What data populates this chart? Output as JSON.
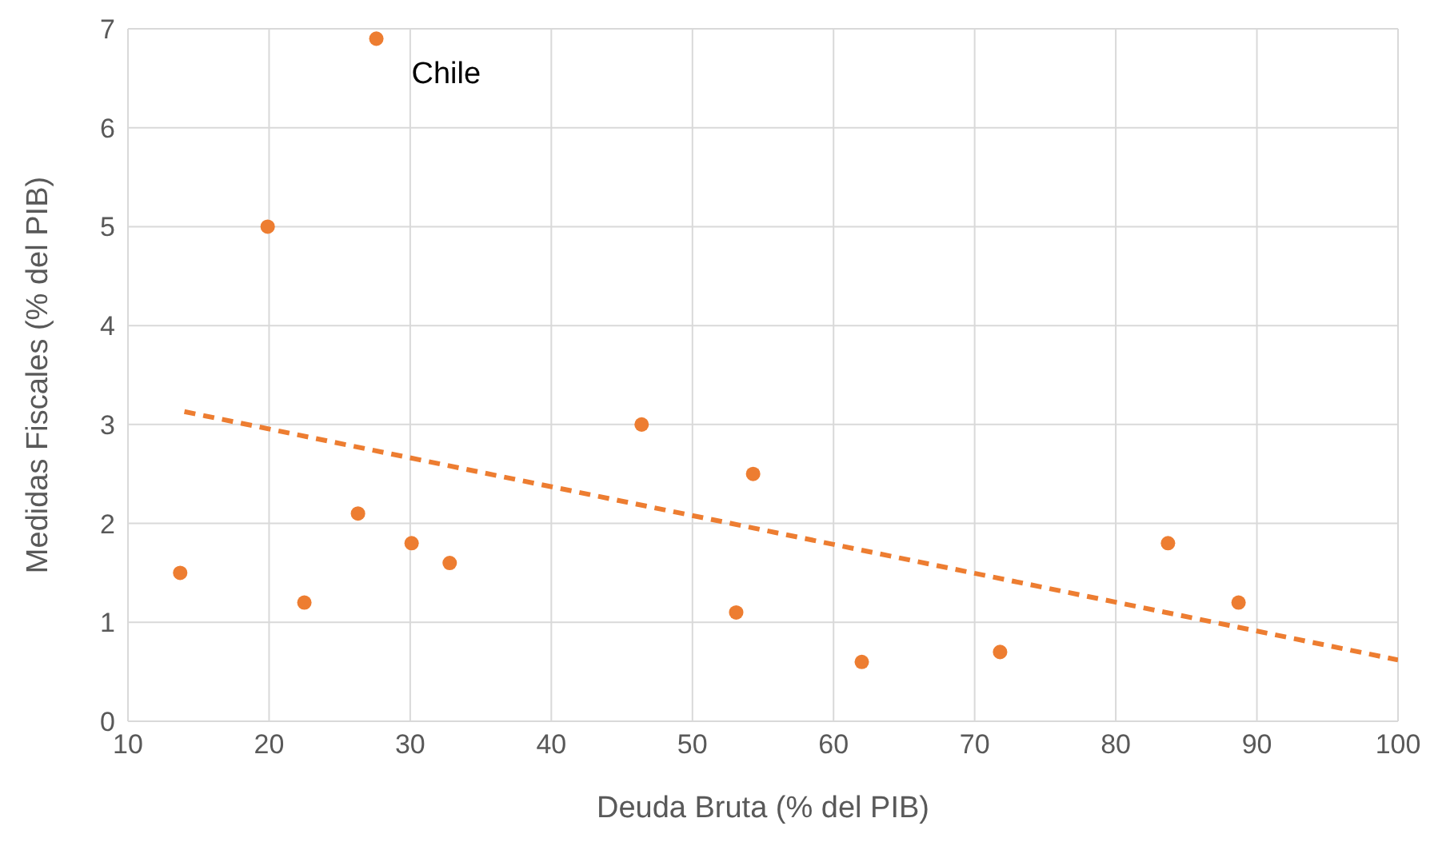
{
  "chart_data": {
    "type": "scatter",
    "xlabel": "Deuda Bruta (% del PIB)",
    "ylabel": "Medidas Fiscales (% del PIB)",
    "xlim": [
      10,
      100
    ],
    "ylim": [
      0,
      7
    ],
    "xticks": [
      10,
      20,
      30,
      40,
      50,
      60,
      70,
      80,
      90,
      100
    ],
    "yticks": [
      0,
      1,
      2,
      3,
      4,
      5,
      6,
      7
    ],
    "grid": true,
    "marker": "circle",
    "series": [
      {
        "color": "#ed7d31",
        "x": [
          13.7,
          19.9,
          27.6,
          22.5,
          26.3,
          30.1,
          32.8,
          46.4,
          54.3,
          53.1,
          62.0,
          71.8,
          83.7,
          88.7
        ],
        "values": [
          1.5,
          5.0,
          6.9,
          1.2,
          2.1,
          1.8,
          1.6,
          3.0,
          2.5,
          1.1,
          0.6,
          0.7,
          1.8,
          1.2
        ]
      },
      {
        "type": "line",
        "color": "#ed7d31",
        "x": [
          14,
          100
        ],
        "values": [
          3.13,
          0.62
        ],
        "line_style": "dashed",
        "marker": "none"
      }
    ],
    "annotations": [
      {
        "text": "Chile",
        "x": 27.6,
        "y": 6.9
      }
    ]
  }
}
